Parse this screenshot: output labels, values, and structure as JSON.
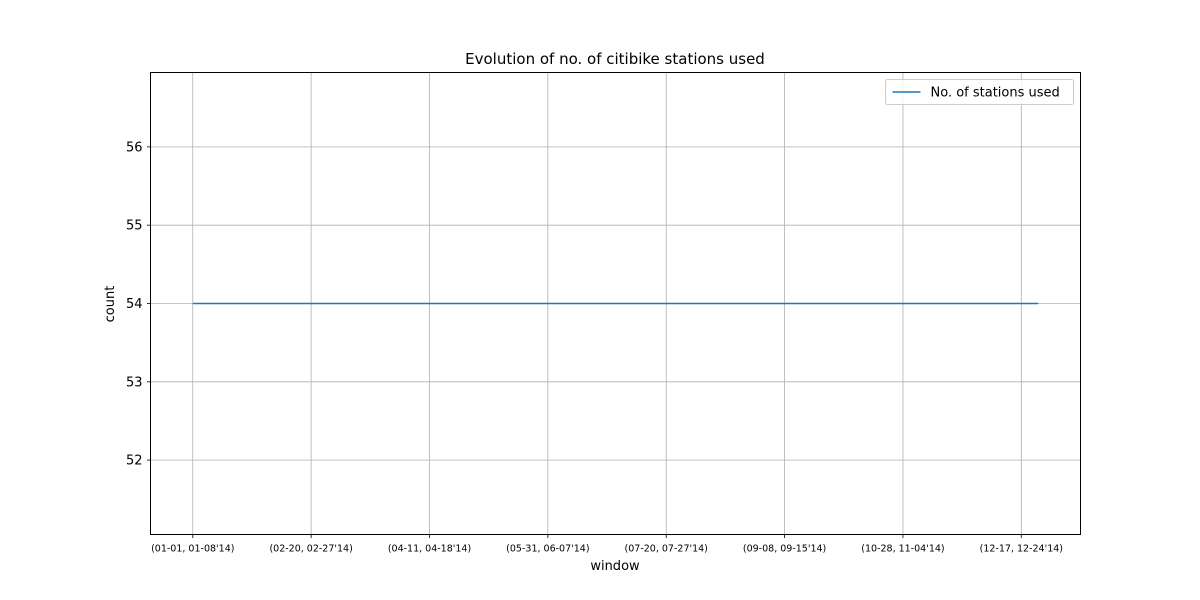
{
  "chart_data": {
    "type": "line",
    "title": "Evolution of no. of citibike stations used",
    "xlabel": "window",
    "ylabel": "count",
    "x_ticks": [
      "(01-01, 01-08'14)",
      "(02-20, 02-27'14)",
      "(04-11, 04-18'14)",
      "(05-31, 06-07'14)",
      "(07-20, 07-27'14)",
      "(09-08, 09-15'14)",
      "(10-28, 11-04'14)",
      "(12-17, 12-24'14)"
    ],
    "x_tick_positions": [
      0,
      7,
      14,
      21,
      28,
      35,
      42,
      49
    ],
    "xlim": [
      -2.5,
      52.5
    ],
    "ylim": [
      51.05,
      56.95
    ],
    "yticks": [
      52,
      53,
      54,
      55,
      56
    ],
    "grid": true,
    "legend_position": "top-right",
    "series": [
      {
        "name": "No. of stations used",
        "color": "#1f77b4",
        "x": [
          0,
          50
        ],
        "values": [
          54,
          54
        ]
      }
    ]
  }
}
